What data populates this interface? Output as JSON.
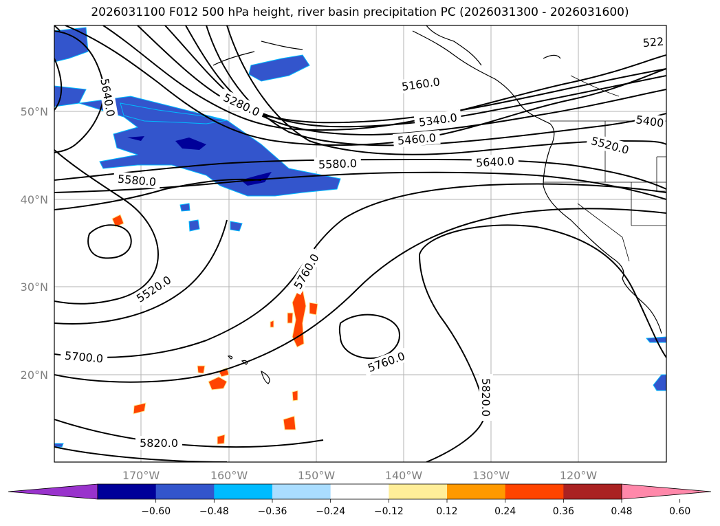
{
  "title": "2026031100 F012 500 hPa height, river basin precipitation PC (2026031300 - 2026031600)",
  "lat_labels": [
    "50°N",
    "40°N",
    "30°N",
    "20°N"
  ],
  "lon_labels": [
    "170°W",
    "160°W",
    "150°W",
    "140°W",
    "130°W",
    "120°W"
  ],
  "contour_labels": [
    "5640.0",
    "5280.0",
    "5160.0",
    "5340.0",
    "5460.0",
    "5580.0",
    "5640.0",
    "5520.0",
    "5400",
    "522",
    "5580.0",
    "5520.0",
    "5700.0",
    "5760.0",
    "5760.0",
    "5820.0",
    "5820.0"
  ],
  "colorbar": {
    "colors": [
      "#9933cc",
      "#000099",
      "#3355cc",
      "#00bbff",
      "#aaddff",
      "#ffffff",
      "#ffee99",
      "#ff9900",
      "#ff4400",
      "#aa2222",
      "#ff88aa"
    ],
    "tick_labels": [
      "−0.60",
      "−0.48",
      "−0.36",
      "−0.24",
      "−0.12",
      "0.12",
      "0.24",
      "0.36",
      "0.48",
      "0.60"
    ]
  }
}
